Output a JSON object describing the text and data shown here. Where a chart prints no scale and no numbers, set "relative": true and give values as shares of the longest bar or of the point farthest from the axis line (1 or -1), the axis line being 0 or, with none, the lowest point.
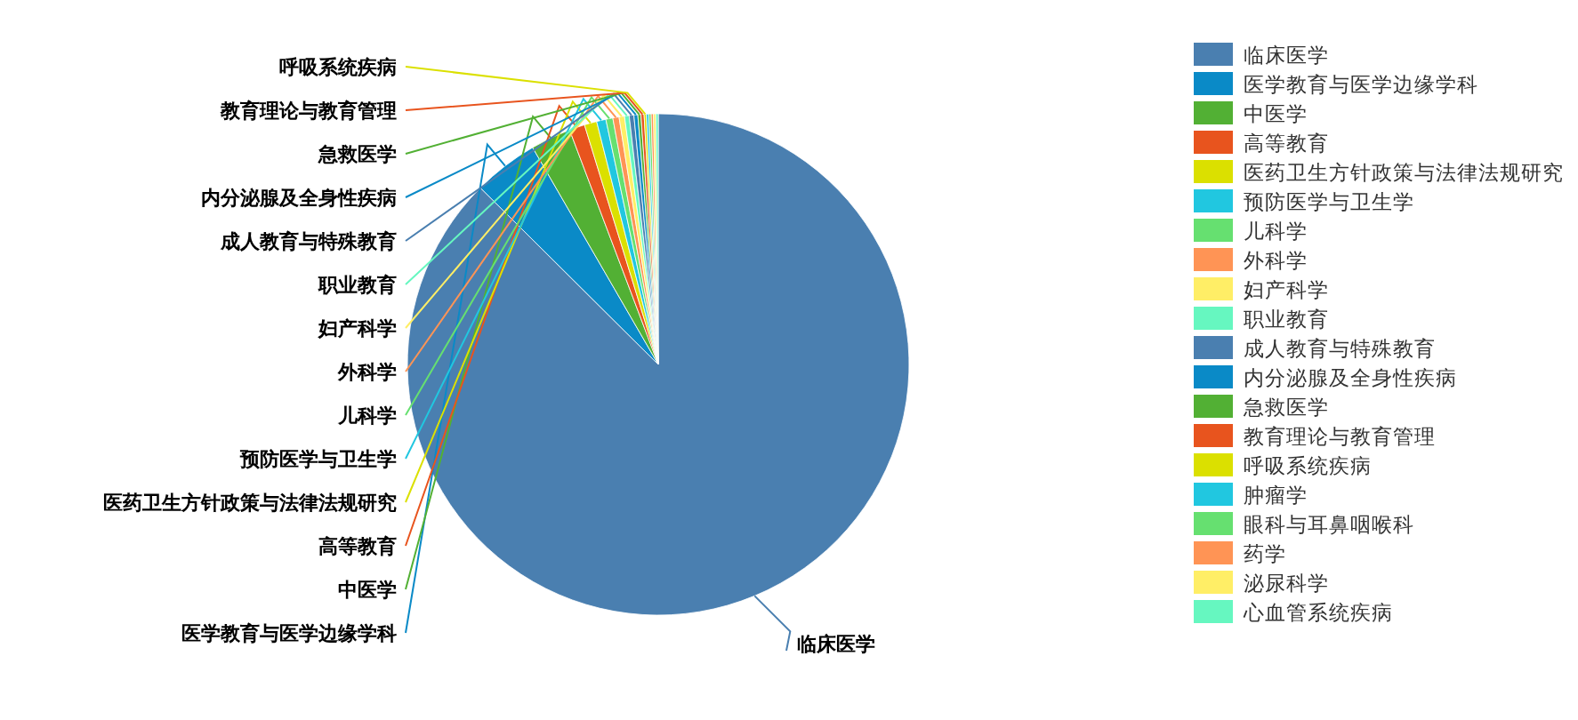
{
  "chart_data": {
    "type": "pie",
    "relative": true,
    "legend": "right",
    "categories": [
      "临床医学",
      "医学教育与医学边缘学科",
      "中医学",
      "高等教育",
      "医药卫生方针政策与法律法规研究",
      "预防医学与卫生学",
      "儿科学",
      "外科学",
      "妇产科学",
      "职业教育",
      "成人教育与特殊教育",
      "内分泌腺及全身性疾病",
      "急救医学",
      "教育理论与教育管理",
      "呼吸系统疾病",
      "肿瘤学",
      "眼科与耳鼻咽喉科",
      "药学",
      "泌尿科学",
      "心血管系统疾病"
    ],
    "values": [
      87.45,
      4.2,
      2.6,
      1.0,
      0.8,
      0.6,
      0.45,
      0.4,
      0.35,
      0.3,
      0.3,
      0.25,
      0.2,
      0.2,
      0.15,
      0.15,
      0.15,
      0.15,
      0.15,
      0.15
    ],
    "colors": [
      "#4a7fb0",
      "#0a8ac7",
      "#52b034",
      "#e8541e",
      "#dbe000",
      "#21c7e0",
      "#66e070",
      "#ff9455",
      "#ffee66",
      "#66f7c0",
      "#4a7fb0",
      "#0a8ac7",
      "#52b034",
      "#e8541e",
      "#dbe000",
      "#21c7e0",
      "#66e070",
      "#ff9455",
      "#ffee66",
      "#66f7c0"
    ]
  }
}
